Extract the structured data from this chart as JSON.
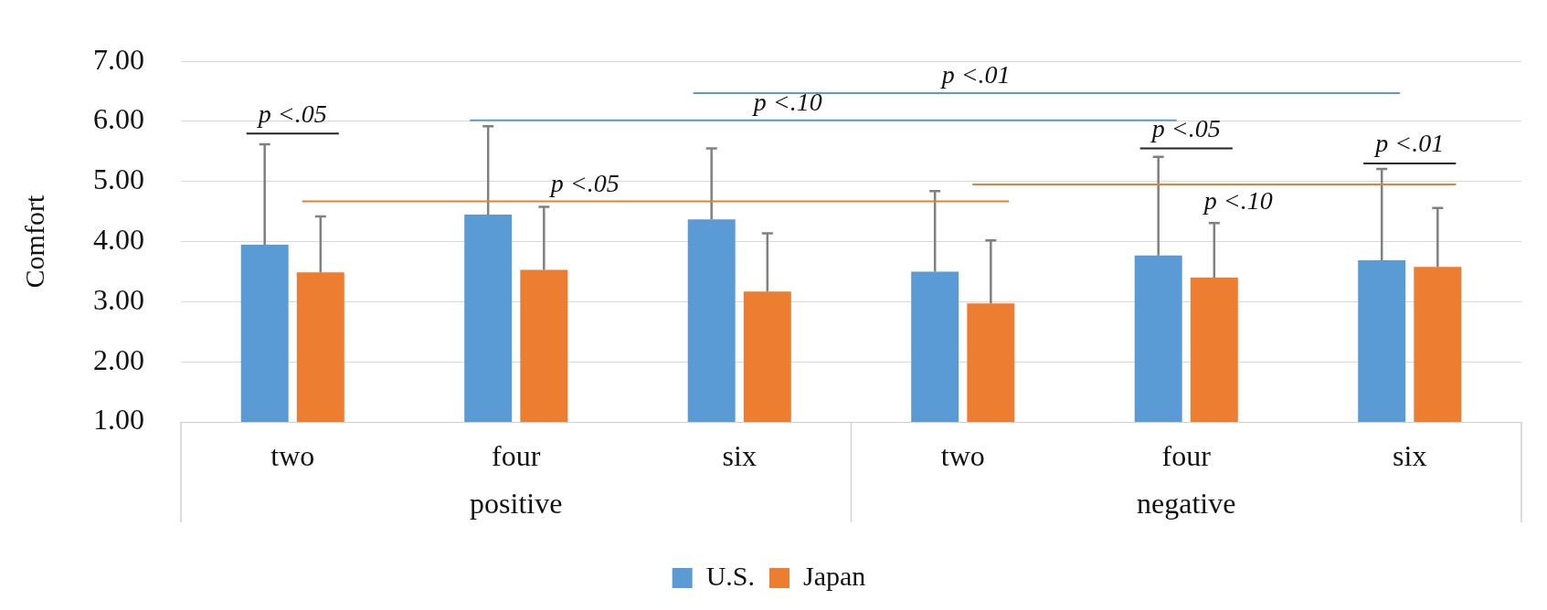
{
  "chart_data": {
    "type": "bar",
    "ylabel": "Comfort",
    "categories": [
      "two",
      "four",
      "six",
      "two",
      "four",
      "six"
    ],
    "series": [
      {
        "name": "U.S.",
        "color": "#5b9bd5",
        "values": [
          3.95,
          4.45,
          4.37,
          3.5,
          3.77,
          3.69
        ],
        "errors": [
          [
            3.95,
            5.62
          ],
          [
            4.45,
            5.92
          ],
          [
            4.37,
            5.55
          ],
          [
            3.5,
            4.84
          ],
          [
            3.77,
            5.41
          ],
          [
            3.69,
            5.21
          ]
        ]
      },
      {
        "name": "Japan",
        "color": "#ed7d31",
        "values": [
          3.49,
          3.53,
          3.17,
          2.97,
          3.4,
          3.58
        ],
        "errors": [
          [
            3.49,
            4.42
          ],
          [
            3.53,
            4.58
          ],
          [
            3.17,
            4.14
          ],
          [
            2.97,
            4.02
          ],
          [
            3.4,
            4.31
          ],
          [
            3.58,
            4.56
          ]
        ]
      }
    ],
    "ylim": [
      1,
      7
    ],
    "yticks": [
      {
        "value": 1,
        "label": "1.00"
      },
      {
        "value": 2,
        "label": "2.00"
      },
      {
        "value": 3,
        "label": "3.00"
      },
      {
        "value": 4,
        "label": "4.00"
      },
      {
        "value": 5,
        "label": "5.00"
      },
      {
        "value": 6,
        "label": "6.00"
      },
      {
        "value": 7,
        "label": "7.00"
      }
    ],
    "grid": "y",
    "legend": "bottom",
    "annotations": [
      "p <.05",
      "p <.10",
      "p <.01",
      "p <.05",
      "p <.05",
      "p <.10",
      "p <.01",
      "positive",
      "negative"
    ]
  }
}
